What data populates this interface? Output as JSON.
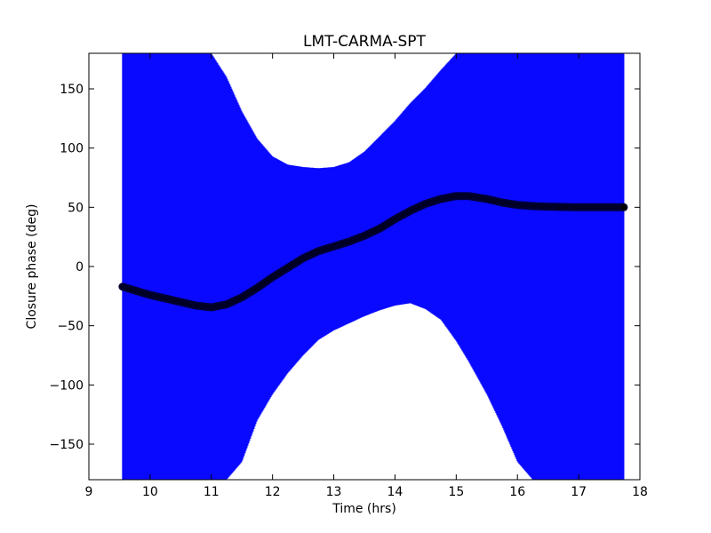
{
  "chart_data": {
    "type": "scatter",
    "title": "LMT-CARMA-SPT",
    "xlabel": "Time (hrs)",
    "ylabel": "Closure phase (deg)",
    "xlim": [
      9,
      18
    ],
    "ylim": [
      -180,
      180
    ],
    "grid": false,
    "x_ticks": [
      9,
      10,
      11,
      12,
      13,
      14,
      15,
      16,
      17,
      18
    ],
    "y_ticks": [
      -150,
      -100,
      -50,
      0,
      50,
      100,
      150
    ],
    "y_tick_labels": [
      "−150",
      "−100",
      "−50",
      "0",
      "50",
      "100",
      "150"
    ],
    "colors": {
      "error_band": "#0000ff",
      "series": "#000000",
      "marker_edge": "#00003a"
    },
    "series": [
      {
        "style": "markers with error bars",
        "x": [
          9.55,
          9.8,
          10.0,
          10.25,
          10.5,
          10.75,
          11.0,
          11.25,
          11.5,
          11.75,
          12.0,
          12.25,
          12.5,
          12.75,
          13.0,
          13.25,
          13.5,
          13.75,
          14.0,
          14.25,
          14.5,
          14.75,
          15.0,
          15.2,
          15.5,
          15.75,
          16.0,
          16.25,
          16.5,
          17.0,
          17.5,
          17.75
        ],
        "y": [
          -17,
          -21,
          -24,
          -27,
          -30,
          -33,
          -34.5,
          -32,
          -26,
          -18,
          -9,
          -1,
          7,
          13,
          17,
          21,
          26,
          32,
          40,
          47,
          53,
          57,
          59.5,
          59.5,
          57,
          54,
          52,
          51,
          50.5,
          50,
          50,
          50
        ],
        "err_lower": [
          -180,
          -180,
          -180,
          -180,
          -180,
          -180,
          -180,
          -180,
          -165,
          -130,
          -108,
          -90,
          -75,
          -62,
          -54,
          -48,
          -42,
          -37,
          -33,
          -31,
          -36,
          -45,
          -63,
          -80,
          -108,
          -135,
          -165,
          -180,
          -180,
          -180,
          -180,
          -180
        ],
        "err_upper": [
          180,
          180,
          180,
          180,
          180,
          180,
          180,
          160,
          131,
          108,
          93,
          86,
          84,
          83,
          84,
          88,
          97,
          110,
          123,
          138,
          151,
          166,
          180,
          180,
          180,
          180,
          180,
          180,
          180,
          180,
          180,
          180
        ]
      }
    ]
  }
}
